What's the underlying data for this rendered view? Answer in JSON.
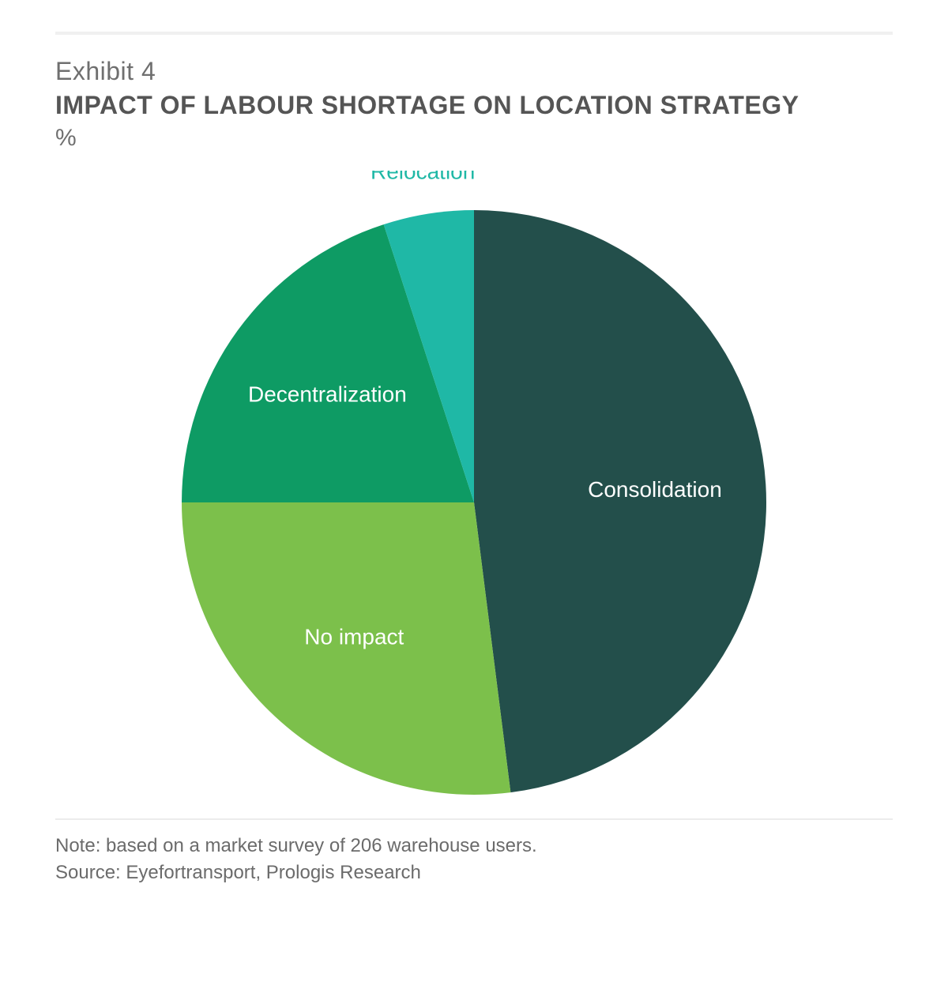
{
  "header": {
    "exhibit_label": "Exhibit 4",
    "title": "IMPACT OF LABOUR SHORTAGE ON LOCATION STRATEGY",
    "unit": "%"
  },
  "chart": {
    "type": "pie",
    "radius": 370,
    "start_angle_deg": 0,
    "background_color": "#ffffff",
    "slices": [
      {
        "label": "Consolidation",
        "value": 48,
        "color": "#234f4b",
        "label_inside": true,
        "label_color": "#ffffff"
      },
      {
        "label": "No impact",
        "value": 27,
        "color": "#7cc04b",
        "label_inside": true,
        "label_color": "#ffffff"
      },
      {
        "label": "Decentralization",
        "value": 20,
        "color": "#0e9b64",
        "label_inside": true,
        "label_color": "#ffffff"
      },
      {
        "label": "Relocation",
        "value": 5,
        "color": "#1fb8a6",
        "label_inside": false,
        "label_color": "#1fb8a6"
      }
    ],
    "label_fontsize": 28,
    "label_radius_factor_inside": 0.62,
    "label_radius_factor_outside": 1.12
  },
  "footnotes": {
    "note": "Note: based on a market survey of 206 warehouse users.",
    "source": "Source: Eyefortransport, Prologis Research"
  },
  "rule_color": "#f0f0f0"
}
